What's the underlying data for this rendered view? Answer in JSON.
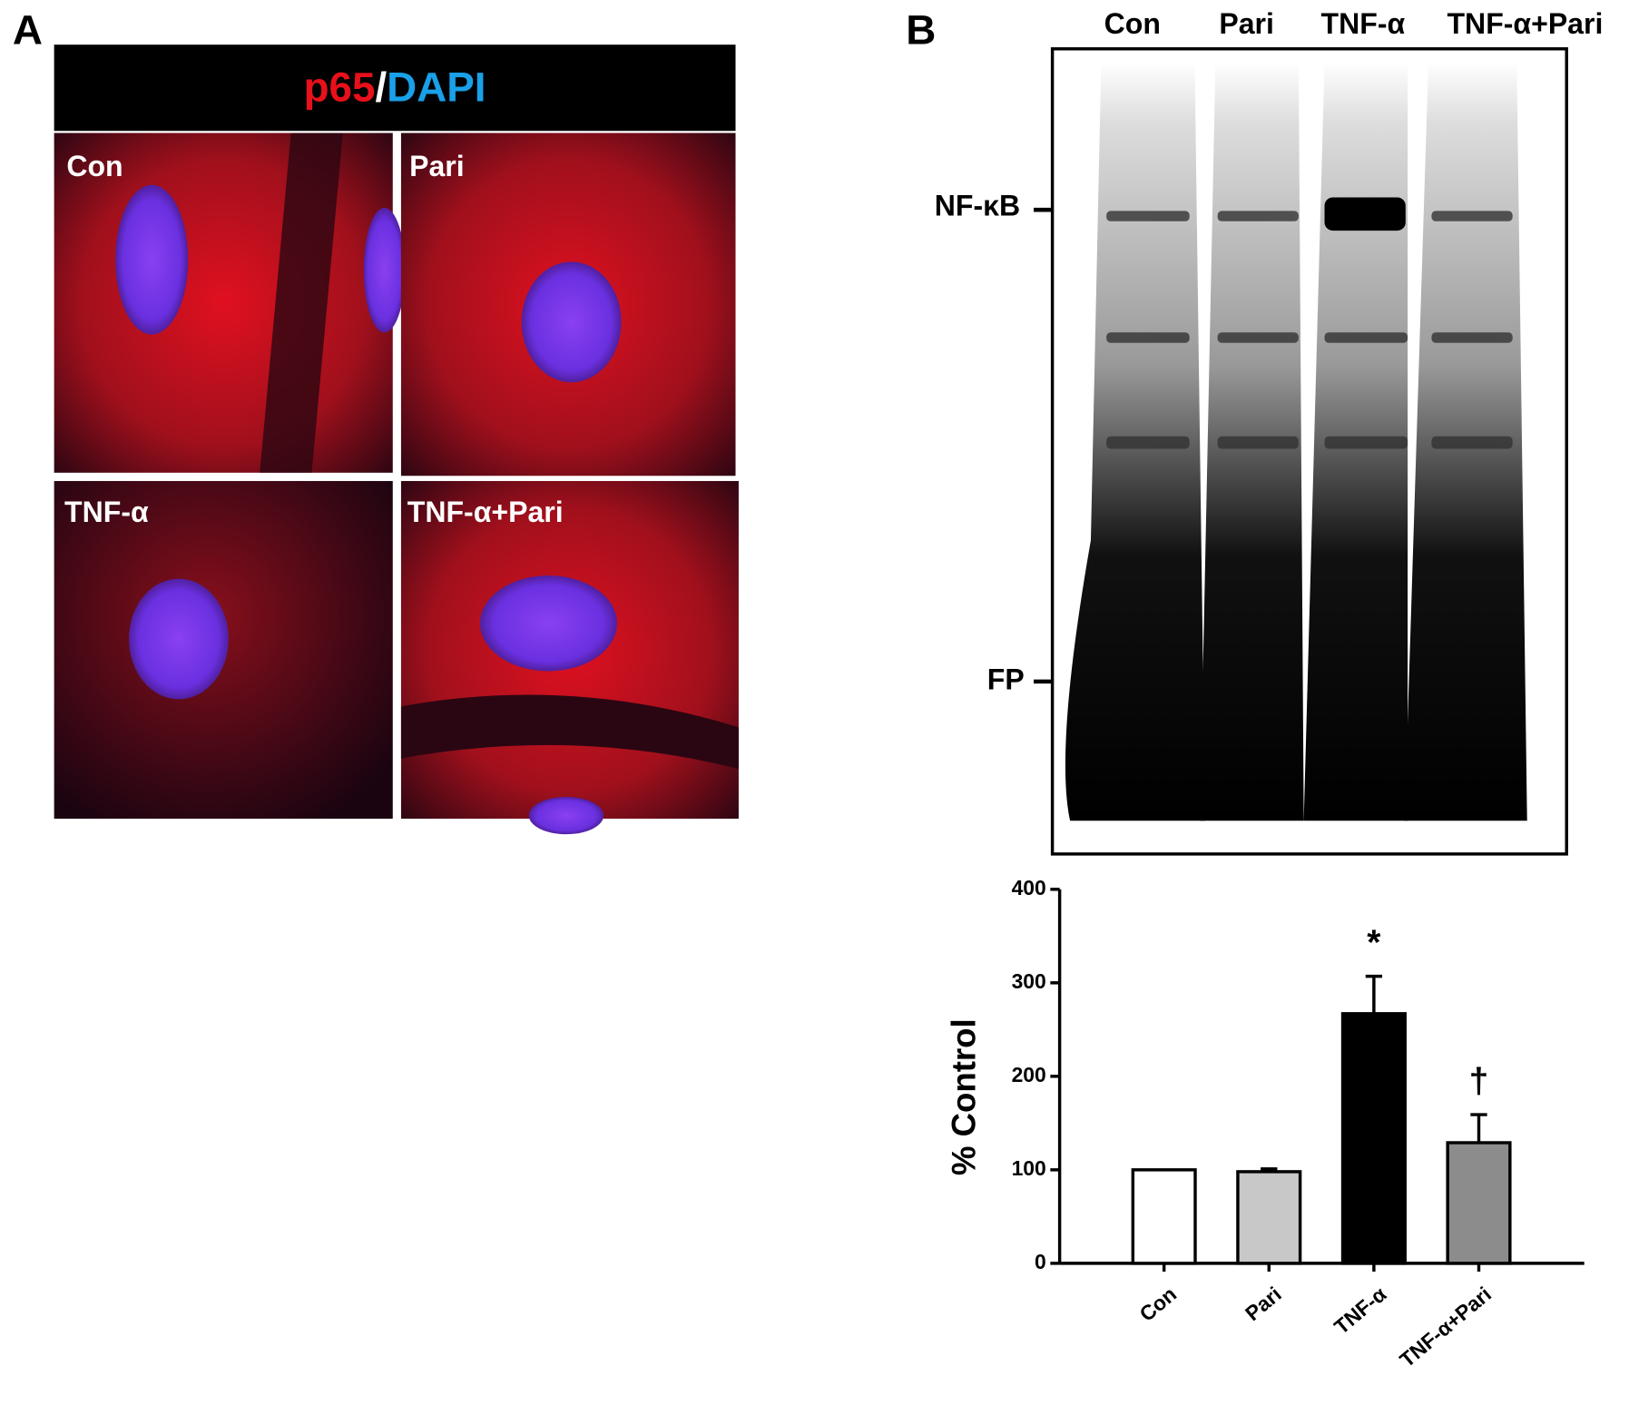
{
  "panel_a": {
    "letter": "A",
    "header": [
      "p65",
      "/",
      "DAPI"
    ],
    "images": [
      "Con",
      "Pari",
      "TNF-α",
      "TNF-α+Pari"
    ]
  },
  "panel_b": {
    "letter": "B",
    "lanes": [
      "Con",
      "Pari",
      "TNF-α",
      "TNF-α+Pari"
    ],
    "markers": [
      "NF-κB",
      "FP"
    ]
  },
  "chart_data": {
    "type": "bar",
    "y_label": "% Control",
    "categories": [
      "Con",
      "Pari",
      "TNF-α",
      "TNF-α+Pari"
    ],
    "values": [
      100,
      98,
      267,
      129
    ],
    "errors": [
      0,
      3,
      40,
      30
    ],
    "colors": [
      "#ffffff",
      "#c8c8c8",
      "#000000",
      "#8c8c8c"
    ],
    "ylim": [
      0,
      400
    ],
    "yticks": [
      0,
      100,
      200,
      300,
      400
    ],
    "annotations": [
      {
        "text": "*",
        "category": "TNF-α"
      },
      {
        "text": "†",
        "category": "TNF-α+Pari"
      }
    ]
  }
}
